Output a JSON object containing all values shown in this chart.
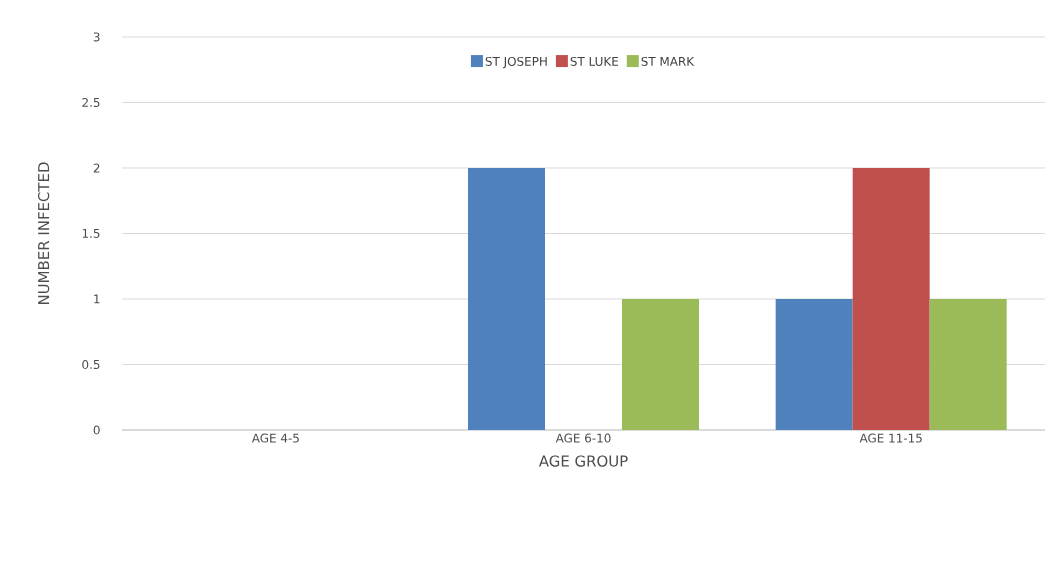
{
  "chart_data": {
    "type": "bar",
    "xlabel": "AGE GROUP",
    "ylabel": "NUMBER INFECTED",
    "categories": [
      "AGE 4-5",
      "AGE 6-10",
      "AGE 11-15"
    ],
    "series": [
      {
        "name": "ST JOSEPH",
        "color": "#4f81bd",
        "values": [
          0,
          2,
          1
        ]
      },
      {
        "name": "ST LUKE",
        "color": "#c0504d",
        "values": [
          0,
          0,
          2
        ]
      },
      {
        "name": "ST MARK",
        "color": "#9bbb59",
        "values": [
          0,
          1,
          1
        ]
      }
    ],
    "ylim": [
      0,
      3
    ],
    "yticks": [
      0,
      0.5,
      1,
      1.5,
      2,
      2.5,
      3
    ],
    "grid": "y",
    "legend": "top"
  }
}
